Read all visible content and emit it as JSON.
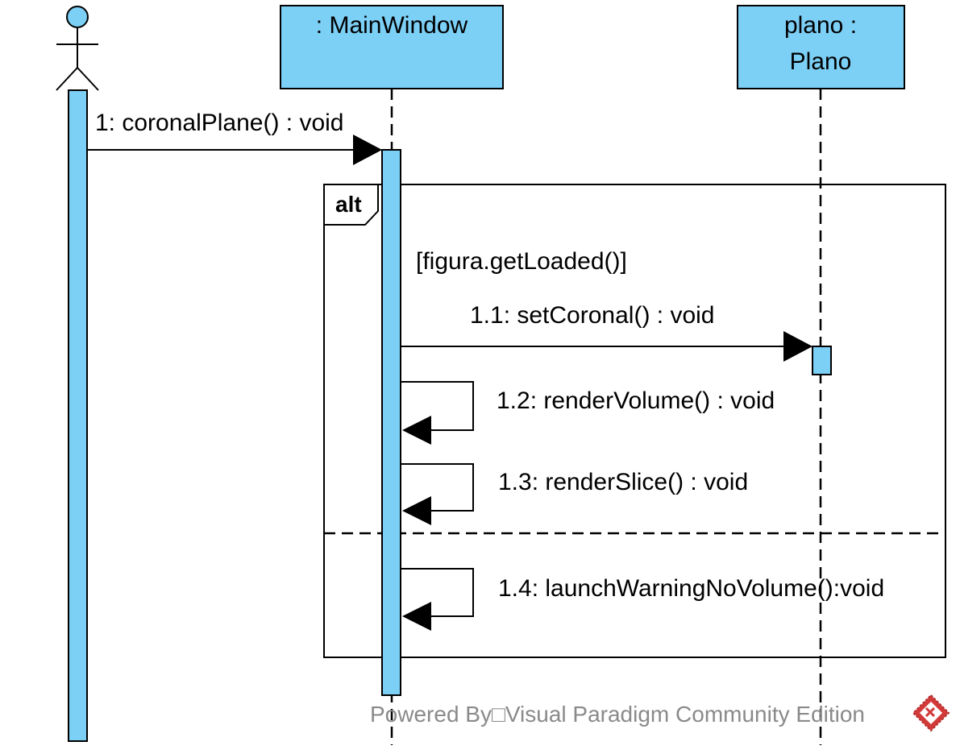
{
  "lifelines": {
    "main_window": {
      "label": ": MainWindow"
    },
    "plano": {
      "label_line1": "plano :",
      "label_line2": "Plano"
    }
  },
  "fragment": {
    "operator": "alt",
    "guard": "[figura.getLoaded()]"
  },
  "messages": {
    "m1": "1: coronalPlane() : void",
    "m1_1": "1.1: setCoronal() : void",
    "m1_2": "1.2: renderVolume() : void",
    "m1_3": "1.3: renderSlice() : void",
    "m1_4": "1.4: launchWarningNoVolume():void"
  },
  "watermark": {
    "text": "Powered By□Visual Paradigm Community Edition"
  },
  "colors": {
    "lifeline_fill": "#7ccff5",
    "line": "#000000",
    "watermark_text": "#8a8a8a",
    "logo_red": "#d23a3a"
  },
  "icons": {
    "actor": "stick-figure-icon",
    "logo": "visual-paradigm-logo-icon"
  }
}
